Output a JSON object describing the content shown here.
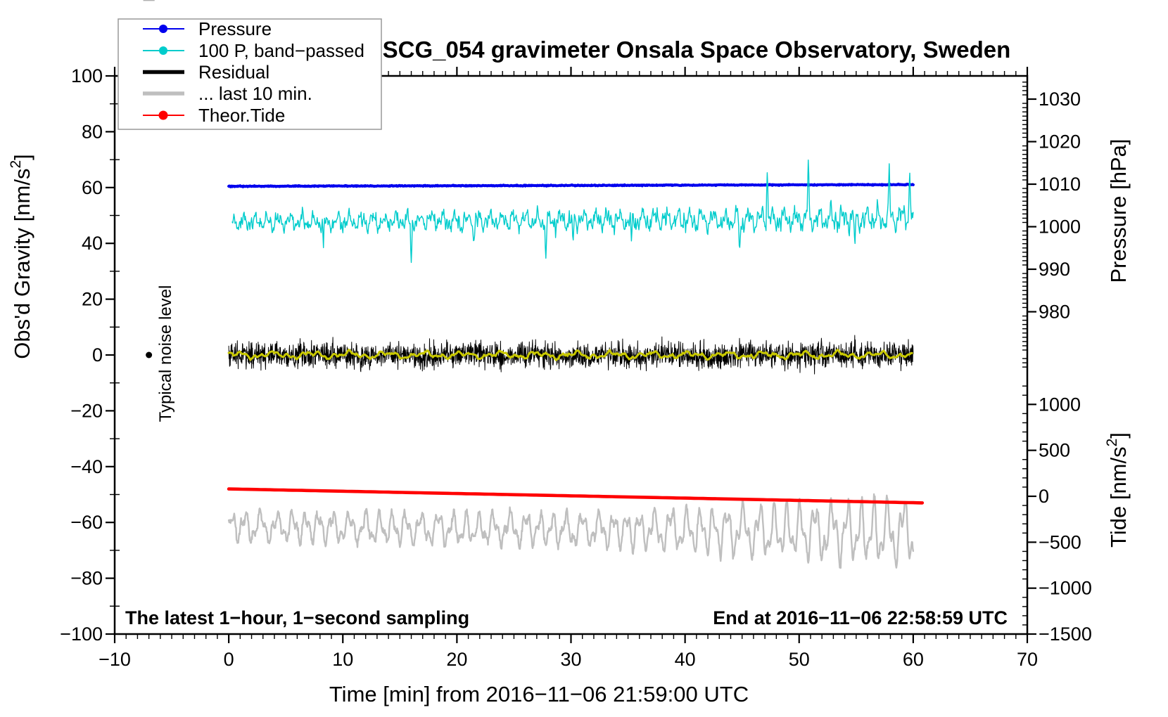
{
  "title": "SCG_054 gravimeter Onsala Space Observatory, Sweden",
  "legend": {
    "items": [
      {
        "label": "Pressure",
        "color": "#0000ee",
        "style": "thin-dot"
      },
      {
        "label": "100 P, band−passed",
        "color": "#00cccc",
        "style": "thin-dot"
      },
      {
        "label": "Residual",
        "color": "#000000",
        "style": "thick"
      },
      {
        "label": "... last 10 min.",
        "color": "#bfbfbf",
        "style": "thick"
      },
      {
        "label": "Theor.Tide",
        "color": "#ff0000",
        "style": "thin-dot"
      }
    ]
  },
  "axes": {
    "x": {
      "label": "Time [min] from 2016−11−06 21:59:00 UTC",
      "range": [
        -10,
        70
      ],
      "major_ticks": [
        -10,
        0,
        10,
        20,
        30,
        40,
        50,
        60,
        70
      ],
      "minor_step": 1
    },
    "gravity": {
      "label_pre": "Obs'd Gravity [nm/s",
      "label_sup": "2",
      "label_post": "]",
      "range": [
        -100,
        100
      ],
      "major_ticks": [
        100,
        80,
        60,
        40,
        20,
        0,
        -20,
        -40,
        -60,
        -80,
        -100
      ],
      "minor_step": 10
    },
    "pressure": {
      "label": "Pressure [hPa]",
      "major_ticks": [
        1030,
        1020,
        1010,
        1000,
        990,
        980
      ],
      "minor_step": 1
    },
    "tide": {
      "label_pre": "Tide [nm/s",
      "label_sup": "2",
      "label_post": "]",
      "major_ticks": [
        1000,
        500,
        0,
        -500,
        -1000,
        -1500
      ],
      "minor_step": 100
    }
  },
  "annotations": {
    "sampling_note": "The latest 1−hour, 1−second sampling",
    "end_note": "End at 2016−11−06 22:58:59 UTC",
    "noise_label": "Typical noise level"
  },
  "chart_data": {
    "type": "line",
    "xlabel": "Time [min] from 2016−11−06 21:59:00 UTC",
    "x_range_min": [
      -10,
      70
    ],
    "gravity_ylim": [
      -100,
      100
    ],
    "pressure_ticks_hPa": [
      1030,
      1020,
      1010,
      1000,
      990,
      980
    ],
    "tide_ticks_nms2": [
      1000,
      500,
      0,
      -500,
      -1000,
      -1500
    ],
    "noise_bar": {
      "t_min": -7,
      "center_gravity": 0,
      "half_range": 20,
      "label": "Typical noise level"
    },
    "series": [
      {
        "key": "last10",
        "name": "... last 10 min.",
        "color": "#bfbfbf",
        "width": 2.4,
        "axis": "gravity",
        "t_start": 0,
        "t_end": 60,
        "center": -61.5,
        "early_amplitude": 5.5,
        "late_amplitude": 12,
        "wiggle_period_min": 1.28,
        "end_value": -65
      },
      {
        "key": "tide",
        "name": "Theor.Tide",
        "color": "#ff0000",
        "width": 4.6,
        "axis": "gravity",
        "t_start": 0,
        "t_end": 60.8,
        "start_gravity": -48,
        "end_gravity": -53,
        "tide_start_nms2": 75,
        "tide_end_nms2": -60
      },
      {
        "key": "pressure",
        "name": "Pressure",
        "color": "#0000ee",
        "width": 4,
        "axis": "pressure",
        "t_start": 0,
        "t_end": 60,
        "start_hPa": 1009.5,
        "end_hPa": 1009.9,
        "jitter_hPa": 0.05
      },
      {
        "key": "band_passed",
        "name": "100 P, band−passed",
        "color": "#00cccc",
        "width": 1.4,
        "axis": "gravity",
        "t_start": 0.3,
        "t_end": 60,
        "center": 47.5,
        "typical_amplitude": 4,
        "late_amplitude_factor": 1.55,
        "spikes": [
          {
            "t": 8.3,
            "value": 39.0
          },
          {
            "t": 16.0,
            "value": 33.5
          },
          {
            "t": 21.5,
            "value": 40.0
          },
          {
            "t": 27.8,
            "value": 36.5
          },
          {
            "t": 30.2,
            "value": 40.0
          },
          {
            "t": 35.3,
            "value": 38.0
          },
          {
            "t": 44.8,
            "value": 38.5
          },
          {
            "t": 47.2,
            "value": 66.0
          },
          {
            "t": 50.8,
            "value": 68.0
          },
          {
            "t": 54.9,
            "value": 37.5
          },
          {
            "t": 57.9,
            "value": 64.5
          },
          {
            "t": 59.7,
            "value": 65.0
          }
        ]
      },
      {
        "key": "residual",
        "name": "Residual",
        "color": "#000000",
        "width": 1,
        "axis": "gravity",
        "t_start": 0,
        "t_end": 60,
        "center": 0,
        "typical_amplitude": 7,
        "spike_amplitude": 14
      },
      {
        "key": "residual_smooth",
        "name": "Residual low-passed (yellow)",
        "color": "#c8c800",
        "width": 3,
        "axis": "gravity",
        "t_start": 0,
        "t_end": 60,
        "center": 0,
        "typical_amplitude": 1.3
      }
    ]
  }
}
